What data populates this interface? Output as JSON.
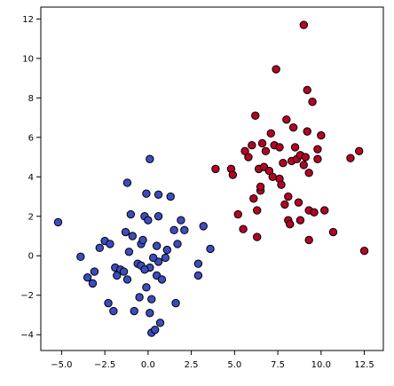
{
  "chart_data": {
    "type": "scatter",
    "title": "",
    "xlabel": "",
    "ylabel": "",
    "xlim": [
      -6.2,
      13.6
    ],
    "ylim": [
      -4.8,
      12.6
    ],
    "grid": false,
    "legend": "none",
    "x_ticks": [
      -5.0,
      -2.5,
      0.0,
      2.5,
      5.0,
      7.5,
      10.0,
      12.5
    ],
    "x_tick_labels": [
      "−5.0",
      "−2.5",
      "0.0",
      "2.5",
      "5.0",
      "7.5",
      "10.0",
      "12.5"
    ],
    "y_ticks": [
      -4,
      -2,
      0,
      2,
      4,
      6,
      8,
      10,
      12
    ],
    "y_tick_labels": [
      "−4",
      "−2",
      "0",
      "2",
      "4",
      "6",
      "8",
      "10",
      "12"
    ],
    "series": [
      {
        "color": "#3b4cc0",
        "points": [
          [
            -5.2,
            1.7
          ],
          [
            -3.9,
            -0.05
          ],
          [
            -3.5,
            -1.1
          ],
          [
            -3.1,
            -0.8
          ],
          [
            -3.2,
            -1.4
          ],
          [
            -2.8,
            0.4
          ],
          [
            -2.5,
            0.75
          ],
          [
            -2.2,
            0.6
          ],
          [
            -2.3,
            -2.4
          ],
          [
            -2.0,
            -2.8
          ],
          [
            -1.9,
            -0.6
          ],
          [
            -1.6,
            -0.7
          ],
          [
            -1.3,
            1.2
          ],
          [
            -1.2,
            3.7
          ],
          [
            -1.0,
            2.1
          ],
          [
            -1.1,
            0.2
          ],
          [
            -0.9,
            1.0
          ],
          [
            -1.4,
            -0.8
          ],
          [
            -1.2,
            -1.2
          ],
          [
            -0.8,
            -2.8
          ],
          [
            -0.6,
            -0.4
          ],
          [
            -0.4,
            -0.5
          ],
          [
            -0.4,
            0.6
          ],
          [
            -0.3,
            0.8
          ],
          [
            -0.2,
            2.0
          ],
          [
            -0.1,
            3.15
          ],
          [
            -0.1,
            -1.6
          ],
          [
            0.1,
            4.9
          ],
          [
            0.0,
            1.8
          ],
          [
            0.1,
            -0.6
          ],
          [
            0.2,
            -2.2
          ],
          [
            0.1,
            -2.9
          ],
          [
            0.2,
            -3.9
          ],
          [
            0.4,
            -3.75
          ],
          [
            0.5,
            0.5
          ],
          [
            0.6,
            -0.3
          ],
          [
            0.5,
            -1.0
          ],
          [
            0.3,
            -0.1
          ],
          [
            0.6,
            2.0
          ],
          [
            0.6,
            3.1
          ],
          [
            0.7,
            -3.4
          ],
          [
            0.8,
            -1.2
          ],
          [
            1.0,
            -0.1
          ],
          [
            1.1,
            0.3
          ],
          [
            1.3,
            3.0
          ],
          [
            1.5,
            1.3
          ],
          [
            1.7,
            0.6
          ],
          [
            1.6,
            -2.4
          ],
          [
            1.9,
            1.8
          ],
          [
            2.1,
            1.3
          ],
          [
            2.9,
            -0.4
          ],
          [
            2.9,
            -1.0
          ],
          [
            3.2,
            1.5
          ],
          [
            3.6,
            0.35
          ],
          [
            -0.5,
            -2.1
          ],
          [
            -1.8,
            -1.0
          ],
          [
            -0.2,
            -0.7
          ]
        ]
      },
      {
        "color": "#b40426",
        "points": [
          [
            3.9,
            4.4
          ],
          [
            4.8,
            4.4
          ],
          [
            4.9,
            4.1
          ],
          [
            5.2,
            2.1
          ],
          [
            5.5,
            1.35
          ],
          [
            5.6,
            5.3
          ],
          [
            5.8,
            5.0
          ],
          [
            6.0,
            5.6
          ],
          [
            6.1,
            2.9
          ],
          [
            6.2,
            7.1
          ],
          [
            6.3,
            2.3
          ],
          [
            6.3,
            0.95
          ],
          [
            6.4,
            4.4
          ],
          [
            6.5,
            3.3
          ],
          [
            6.5,
            3.5
          ],
          [
            6.6,
            5.7
          ],
          [
            6.7,
            4.5
          ],
          [
            6.8,
            5.3
          ],
          [
            7.0,
            4.3
          ],
          [
            7.1,
            6.2
          ],
          [
            7.2,
            4.0
          ],
          [
            7.3,
            5.6
          ],
          [
            7.4,
            9.45
          ],
          [
            7.6,
            5.5
          ],
          [
            7.6,
            3.9
          ],
          [
            7.8,
            4.7
          ],
          [
            7.9,
            2.6
          ],
          [
            8.0,
            6.9
          ],
          [
            8.1,
            1.8
          ],
          [
            8.1,
            3.0
          ],
          [
            8.2,
            1.6
          ],
          [
            8.3,
            4.8
          ],
          [
            8.4,
            6.5
          ],
          [
            8.5,
            5.5
          ],
          [
            8.6,
            4.9
          ],
          [
            8.7,
            2.7
          ],
          [
            8.8,
            1.8
          ],
          [
            8.8,
            5.1
          ],
          [
            9.0,
            11.7
          ],
          [
            9.0,
            4.6
          ],
          [
            9.1,
            5.0
          ],
          [
            9.2,
            8.4
          ],
          [
            9.2,
            6.3
          ],
          [
            9.3,
            2.3
          ],
          [
            9.3,
            0.8
          ],
          [
            9.5,
            7.8
          ],
          [
            9.6,
            2.2
          ],
          [
            9.8,
            5.4
          ],
          [
            9.8,
            4.9
          ],
          [
            10.0,
            6.1
          ],
          [
            10.2,
            2.3
          ],
          [
            10.7,
            1.2
          ],
          [
            11.7,
            4.95
          ],
          [
            12.2,
            5.3
          ],
          [
            12.5,
            0.25
          ],
          [
            9.3,
            4.2
          ],
          [
            7.7,
            3.6
          ]
        ]
      }
    ]
  }
}
